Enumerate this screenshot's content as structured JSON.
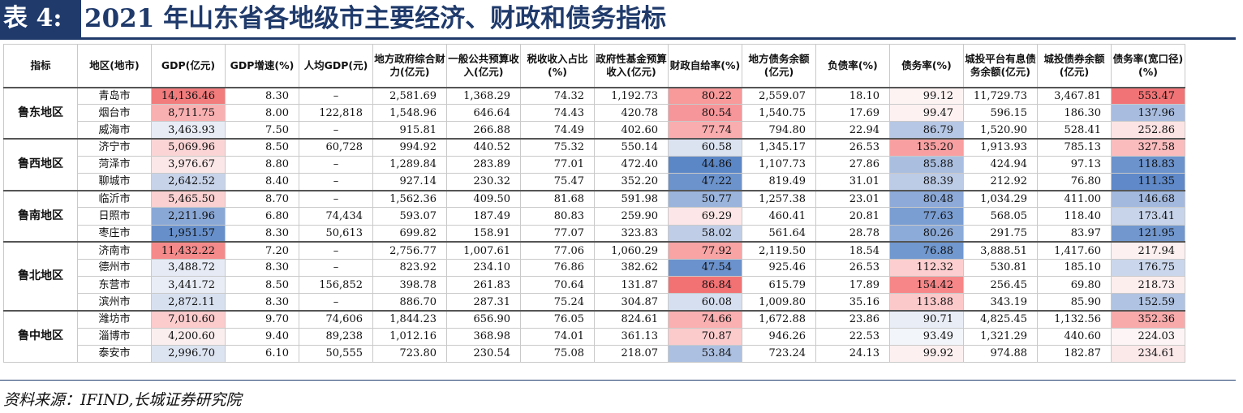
{
  "title": {
    "label": "表 4:",
    "text": "2021 年山东省各地级市主要经济、财政和债务指标"
  },
  "columns": [
    "指标",
    "地区(地市)",
    "GDP(亿元)",
    "GDP增速(%)",
    "人均GDP(元)",
    "地方政府综合财力(亿元)",
    "一般公共预算收入(亿元)",
    "税收收入占比(%)",
    "政府性基金预算收入(亿元)",
    "财政自给率(%)",
    "地方债务余额(亿元)",
    "负债率(%)",
    "债务率(%)",
    "城投平台有息债务余额(亿元)",
    "城投债券余额(亿元)",
    "债务率(宽口径)(%)"
  ],
  "regions": [
    {
      "name": "鲁东地区",
      "rows": [
        [
          "青岛市",
          "14,136.46",
          "8.30",
          "–",
          "2,581.69",
          "1,368.29",
          "74.32",
          "1,192.73",
          "80.22",
          "2,559.07",
          "18.10",
          "99.12",
          "11,729.73",
          "3,467.81",
          "553.47"
        ],
        [
          "烟台市",
          "8,711.75",
          "8.00",
          "122,818",
          "1,548.96",
          "646.64",
          "74.43",
          "420.78",
          "80.54",
          "1,540.75",
          "17.69",
          "99.47",
          "596.15",
          "186.30",
          "137.96"
        ],
        [
          "威海市",
          "3,463.93",
          "7.50",
          "–",
          "915.81",
          "266.88",
          "74.49",
          "402.60",
          "77.74",
          "794.80",
          "22.94",
          "86.79",
          "1,520.90",
          "528.41",
          "252.86"
        ]
      ]
    },
    {
      "name": "鲁西地区",
      "rows": [
        [
          "济宁市",
          "5,069.96",
          "8.50",
          "60,728",
          "994.92",
          "440.52",
          "75.32",
          "550.14",
          "60.58",
          "1,345.17",
          "26.53",
          "135.20",
          "1,913.93",
          "785.13",
          "327.58"
        ],
        [
          "菏泽市",
          "3,976.67",
          "8.80",
          "–",
          "1,289.84",
          "283.89",
          "77.01",
          "472.40",
          "44.86",
          "1,107.73",
          "27.86",
          "85.88",
          "424.94",
          "97.13",
          "118.83"
        ],
        [
          "聊城市",
          "2,642.52",
          "8.40",
          "–",
          "927.14",
          "230.32",
          "75.47",
          "352.20",
          "47.22",
          "819.49",
          "31.01",
          "88.39",
          "212.92",
          "76.80",
          "111.35"
        ]
      ]
    },
    {
      "name": "鲁南地区",
      "rows": [
        [
          "临沂市",
          "5,465.50",
          "8.70",
          "–",
          "1,562.36",
          "409.50",
          "81.68",
          "591.98",
          "50.77",
          "1,257.38",
          "23.01",
          "80.48",
          "1,034.29",
          "411.00",
          "146.68"
        ],
        [
          "日照市",
          "2,211.96",
          "6.80",
          "74,434",
          "593.07",
          "187.49",
          "80.83",
          "259.90",
          "69.29",
          "460.41",
          "20.81",
          "77.63",
          "568.05",
          "118.40",
          "173.41"
        ],
        [
          "枣庄市",
          "1,951.57",
          "8.30",
          "50,613",
          "699.82",
          "158.91",
          "77.07",
          "323.83",
          "58.02",
          "561.64",
          "28.78",
          "80.26",
          "291.75",
          "83.97",
          "121.95"
        ]
      ]
    },
    {
      "name": "鲁北地区",
      "rows": [
        [
          "济南市",
          "11,432.22",
          "7.20",
          "–",
          "2,756.77",
          "1,007.61",
          "77.06",
          "1,060.29",
          "77.92",
          "2,119.50",
          "18.54",
          "76.88",
          "3,888.51",
          "1,417.60",
          "217.94"
        ],
        [
          "德州市",
          "3,488.72",
          "8.30",
          "–",
          "823.92",
          "234.10",
          "76.86",
          "382.62",
          "47.54",
          "925.46",
          "26.53",
          "112.32",
          "530.81",
          "185.10",
          "176.75"
        ],
        [
          "东营市",
          "3,441.72",
          "8.50",
          "156,852",
          "398.78",
          "261.83",
          "70.64",
          "131.87",
          "86.84",
          "615.79",
          "17.89",
          "154.42",
          "256.45",
          "69.80",
          "218.73"
        ],
        [
          "滨州市",
          "2,872.11",
          "8.30",
          "–",
          "886.70",
          "287.31",
          "75.24",
          "304.87",
          "60.08",
          "1,009.80",
          "35.16",
          "113.88",
          "343.19",
          "85.90",
          "152.59"
        ]
      ]
    },
    {
      "name": "鲁中地区",
      "rows": [
        [
          "潍坊市",
          "7,010.60",
          "9.70",
          "74,606",
          "1,844.23",
          "656.90",
          "76.05",
          "824.61",
          "74.66",
          "1,672.88",
          "23.86",
          "90.71",
          "4,825.45",
          "1,132.56",
          "352.36"
        ],
        [
          "淄博市",
          "4,200.60",
          "9.40",
          "89,238",
          "1,012.16",
          "368.98",
          "74.01",
          "361.13",
          "70.87",
          "946.26",
          "22.53",
          "93.49",
          "1,321.29",
          "440.60",
          "224.03"
        ],
        [
          "泰安市",
          "2,996.70",
          "6.10",
          "50,555",
          "723.80",
          "230.54",
          "75.08",
          "218.07",
          "53.84",
          "723.24",
          "24.13",
          "99.92",
          "974.88",
          "182.87",
          "234.61"
        ]
      ]
    }
  ],
  "heat": {
    "gdp": [
      "#f27b7c",
      "#f9b0b1",
      "#e8ecf5",
      "#fbd5d6",
      "#fbe7e8",
      "#c7d3e9",
      "#fbd0d1",
      "#8aa8d6",
      "#6790cb",
      "#f58a8b",
      "#e5eaf4",
      "#e8edf6",
      "#d7e0ef",
      "#fccbcc",
      "#fbeeee",
      "#dde4f1"
    ],
    "fiscal": [
      "#f8999a",
      "#f7969a",
      "#f9adae",
      "#dbe3f1",
      "#5b87c7",
      "#6c93cc",
      "#9ab4dc",
      "#fde6e7",
      "#bfcde7",
      "#f8a3a4",
      "#6b92cc",
      "#f27274",
      "#d5dfef",
      "#faafb0",
      "#fbcbcc",
      "#acc0e1"
    ],
    "debt": [
      "#fdf3f3",
      "#fdf1f1",
      "#b6c7e5",
      "#f8a0a1",
      "#aabfe0",
      "#bccbe6",
      "#8daad8",
      "#7b9ed2",
      "#8dabd8",
      "#7198cf",
      "#fccecf",
      "#f68687",
      "#fcc9ca",
      "#e8edf6",
      "#f2f5fa",
      "#fdf0f0"
    ],
    "wide": [
      "#f27375",
      "#a7bcdf",
      "#fde4e4",
      "#fabcbd",
      "#6c93cc",
      "#5f89c8",
      "#a3b9de",
      "#c7d4ea",
      "#7197ce",
      "#fdf0f0",
      "#cad6eb",
      "#fdeeee",
      "#b0c3e2",
      "#f8aaab",
      "#fdf5f5",
      "#fbe8e9"
    ]
  },
  "source": "资料来源：IFIND,长城证券研究院"
}
